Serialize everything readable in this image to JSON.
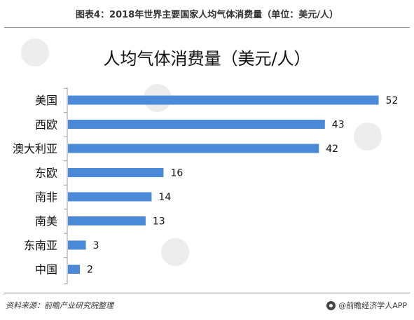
{
  "header": {
    "title": "图表4：2018年世界主要国家人均气体消费量（单位：美元/人）"
  },
  "footer": {
    "source": "资料来源：前瞻产业研究院整理",
    "brand": "@前瞻经济学人APP"
  },
  "colors": {
    "bar": "#4a8ad8",
    "axis": "#9a9a9a",
    "rule": "#8a8a8a",
    "watermark": "#e6e6e6"
  },
  "chart_data": {
    "type": "bar",
    "orientation": "horizontal",
    "title": "人均气体消费量（美元/人）",
    "categories": [
      "美国",
      "西欧",
      "澳大利亚",
      "东欧",
      "南非",
      "南美",
      "东南亚",
      "中国"
    ],
    "values": [
      52,
      43,
      42,
      16,
      14,
      13,
      3,
      2
    ],
    "grid": false,
    "legend": "none"
  }
}
